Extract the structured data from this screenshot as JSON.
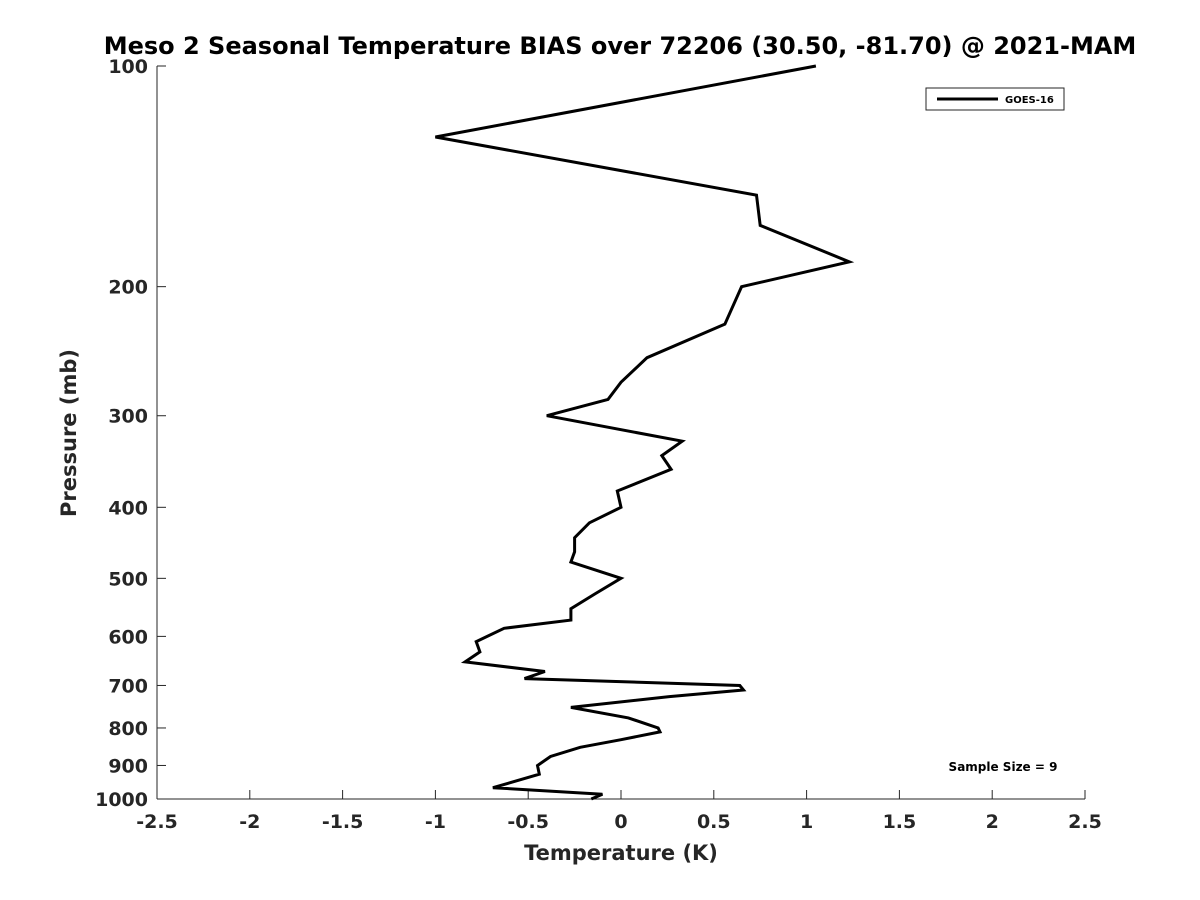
{
  "chart_data": {
    "type": "line",
    "title": "Meso 2 Seasonal Temperature BIAS over 72206 (30.50, -81.70) @ 2021-MAM",
    "xlabel": "Temperature (K)",
    "ylabel": "Pressure (mb)",
    "xlim": [
      -2.5,
      2.5
    ],
    "ylim": [
      100,
      1000
    ],
    "y_scale": "log",
    "y_reversed": true,
    "x_ticks": [
      -2.5,
      -2,
      -1.5,
      -1,
      -0.5,
      0,
      0.5,
      1,
      1.5,
      2,
      2.5
    ],
    "x_tick_labels": [
      "-2.5",
      "-2",
      "-1.5",
      "-1",
      "-0.5",
      "0",
      "0.5",
      "1",
      "1.5",
      "2",
      "2.5"
    ],
    "y_ticks": [
      100,
      200,
      300,
      400,
      500,
      600,
      700,
      800,
      900,
      1000
    ],
    "y_tick_labels": [
      "100",
      "200",
      "300",
      "400",
      "500",
      "600",
      "700",
      "800",
      "900",
      "1000"
    ],
    "grid": false,
    "legend_position": "top-right",
    "annotation": "Sample Size = 9",
    "series": [
      {
        "name": "GOES-16",
        "color": "#000000",
        "points": [
          {
            "x": 1.05,
            "p": 100
          },
          {
            "x": -1.0,
            "p": 125
          },
          {
            "x": 0.73,
            "p": 150
          },
          {
            "x": 0.75,
            "p": 165
          },
          {
            "x": 1.23,
            "p": 185
          },
          {
            "x": 0.65,
            "p": 200
          },
          {
            "x": 0.56,
            "p": 225
          },
          {
            "x": 0.14,
            "p": 250
          },
          {
            "x": 0.0,
            "p": 270
          },
          {
            "x": -0.07,
            "p": 285
          },
          {
            "x": -0.4,
            "p": 300
          },
          {
            "x": 0.33,
            "p": 325
          },
          {
            "x": 0.22,
            "p": 340
          },
          {
            "x": 0.27,
            "p": 355
          },
          {
            "x": -0.02,
            "p": 380
          },
          {
            "x": 0.0,
            "p": 400
          },
          {
            "x": -0.17,
            "p": 420
          },
          {
            "x": -0.25,
            "p": 440
          },
          {
            "x": -0.25,
            "p": 460
          },
          {
            "x": -0.27,
            "p": 475
          },
          {
            "x": 0.0,
            "p": 500
          },
          {
            "x": -0.14,
            "p": 525
          },
          {
            "x": -0.27,
            "p": 550
          },
          {
            "x": -0.27,
            "p": 570
          },
          {
            "x": -0.63,
            "p": 585
          },
          {
            "x": -0.78,
            "p": 610
          },
          {
            "x": -0.76,
            "p": 630
          },
          {
            "x": -0.84,
            "p": 650
          },
          {
            "x": -0.41,
            "p": 670
          },
          {
            "x": -0.52,
            "p": 685
          },
          {
            "x": 0.64,
            "p": 700
          },
          {
            "x": 0.66,
            "p": 710
          },
          {
            "x": 0.26,
            "p": 725
          },
          {
            "x": -0.27,
            "p": 750
          },
          {
            "x": 0.04,
            "p": 775
          },
          {
            "x": 0.2,
            "p": 800
          },
          {
            "x": 0.21,
            "p": 810
          },
          {
            "x": 0.0,
            "p": 830
          },
          {
            "x": -0.22,
            "p": 850
          },
          {
            "x": -0.38,
            "p": 875
          },
          {
            "x": -0.45,
            "p": 900
          },
          {
            "x": -0.44,
            "p": 925
          },
          {
            "x": -0.69,
            "p": 965
          },
          {
            "x": -0.1,
            "p": 985
          },
          {
            "x": -0.16,
            "p": 1000
          }
        ]
      }
    ]
  }
}
